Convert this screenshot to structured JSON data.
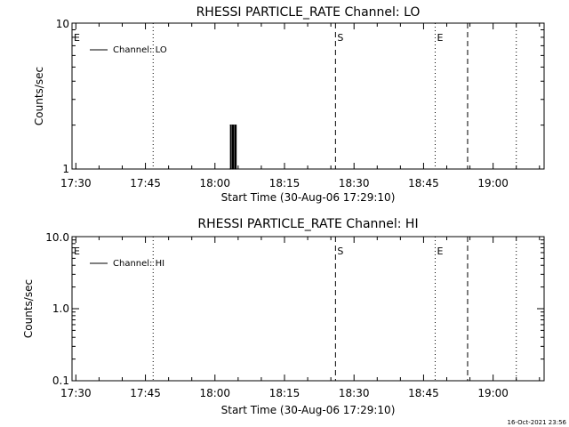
{
  "timestamp": "16-Oct-2021 23:56",
  "chart_data": [
    {
      "type": "line",
      "title": "RHESSI PARTICLE_RATE Channel: LO",
      "xlabel": "Start Time (30-Aug-06 17:29:10)",
      "ylabel": "Counts/sec",
      "yscale": "log",
      "ylim": [
        1,
        10
      ],
      "yticks": [
        {
          "value": 1,
          "label": "1"
        },
        {
          "value": 10,
          "label": "10"
        }
      ],
      "xlim": [
        "17:29:10",
        "19:11:00"
      ],
      "xticks": [
        "17:30",
        "17:45",
        "18:00",
        "18:15",
        "18:30",
        "18:45",
        "19:00"
      ],
      "grid": false,
      "legend": {
        "placement": "top-left",
        "entries": [
          "Channel: LO"
        ]
      },
      "series": [
        {
          "name": "Channel: LO",
          "x": [
            "18:03:15",
            "18:03:20",
            "18:03:25",
            "18:03:40",
            "18:03:45",
            "18:03:55",
            "18:04:00",
            "18:04:15",
            "18:04:20",
            "18:04:30",
            "18:04:35"
          ],
          "y": [
            1,
            2,
            1,
            2,
            1,
            2,
            1,
            2,
            1,
            2,
            1
          ]
        }
      ],
      "vlines": [
        {
          "x": "17:46:40",
          "style": "dotted",
          "label": ""
        },
        {
          "x": "18:26:00",
          "style": "dashed",
          "label": "S"
        },
        {
          "x": "18:47:30",
          "style": "dotted",
          "label": "E"
        },
        {
          "x": "18:54:30",
          "style": "dashed",
          "label": ""
        },
        {
          "x": "19:05:00",
          "style": "dotted",
          "label": ""
        }
      ],
      "edge_label": "E"
    },
    {
      "type": "line",
      "title": "RHESSI PARTICLE_RATE Channel: HI",
      "xlabel": "Start Time (30-Aug-06 17:29:10)",
      "ylabel": "Counts/sec",
      "yscale": "log",
      "ylim": [
        0.1,
        10
      ],
      "yticks": [
        {
          "value": 0.1,
          "label": "0.1"
        },
        {
          "value": 1,
          "label": "1.0"
        },
        {
          "value": 10,
          "label": "10.0"
        }
      ],
      "xlim": [
        "17:29:10",
        "19:11:00"
      ],
      "xticks": [
        "17:30",
        "17:45",
        "18:00",
        "18:15",
        "18:30",
        "18:45",
        "19:00"
      ],
      "grid": false,
      "legend": {
        "placement": "top-left",
        "entries": [
          "Channel: HI"
        ]
      },
      "series": [
        {
          "name": "Channel: HI",
          "x": [],
          "y": []
        }
      ],
      "vlines": [
        {
          "x": "17:46:40",
          "style": "dotted",
          "label": ""
        },
        {
          "x": "18:26:00",
          "style": "dashed",
          "label": "S"
        },
        {
          "x": "18:47:30",
          "style": "dotted",
          "label": "E"
        },
        {
          "x": "18:54:30",
          "style": "dashed",
          "label": ""
        },
        {
          "x": "19:05:00",
          "style": "dotted",
          "label": ""
        }
      ],
      "edge_label": "E"
    }
  ]
}
